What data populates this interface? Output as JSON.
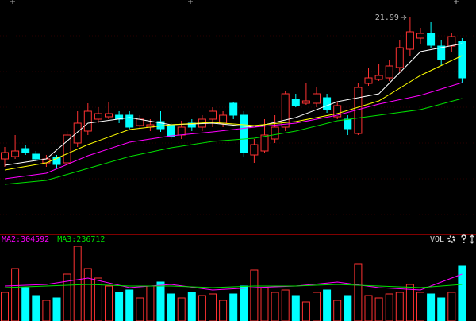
{
  "chart_data": [
    {
      "type": "candlestick",
      "open": [
        16.65,
        16.74,
        17.04,
        16.83,
        16.5,
        16.71,
        16.5,
        17.25,
        17.7,
        18.15,
        18.24,
        18.3,
        18.3,
        17.91,
        17.85,
        18.06,
        17.91,
        17.55,
        18.0,
        17.85,
        18.15,
        18.0,
        18.75,
        18.3,
        16.8,
        16.95,
        17.4,
        17.85,
        18.9,
        18.75,
        18.75,
        18.96,
        18.24,
        18.15,
        17.61,
        19.5,
        19.65,
        19.71,
        20.1,
        20.79,
        21.21,
        21.39,
        20.91,
        20.91,
        21.09
      ],
      "close": [
        16.89,
        16.95,
        16.89,
        16.65,
        16.65,
        16.44,
        17.55,
        18.0,
        18.45,
        18.36,
        18.36,
        18.15,
        17.85,
        18.15,
        17.94,
        17.79,
        17.49,
        17.85,
        17.85,
        18.15,
        18.45,
        18.3,
        18.3,
        16.89,
        17.19,
        17.55,
        17.85,
        19.11,
        18.66,
        18.84,
        19.11,
        18.51,
        18.66,
        17.79,
        19.35,
        19.71,
        19.8,
        20.16,
        20.85,
        21.45,
        21.39,
        20.94,
        20.4,
        21.27,
        19.71
      ],
      "high": [
        17.1,
        17.55,
        17.19,
        16.95,
        16.8,
        16.8,
        17.7,
        18.45,
        18.75,
        18.6,
        18.81,
        18.45,
        18.45,
        18.3,
        18.15,
        18.45,
        18.0,
        18.09,
        18.15,
        18.3,
        18.6,
        18.45,
        18.81,
        18.45,
        17.4,
        18.15,
        18.3,
        19.2,
        19.11,
        19.5,
        19.35,
        19.11,
        18.81,
        18.3,
        19.5,
        20.1,
        20.25,
        20.4,
        21.15,
        21.99,
        21.6,
        21.81,
        21.15,
        21.39,
        21.21
      ],
      "low": [
        16.35,
        16.65,
        16.8,
        16.56,
        16.35,
        16.29,
        16.41,
        17.1,
        17.55,
        18.0,
        18.15,
        18.0,
        17.79,
        17.79,
        17.7,
        17.67,
        17.4,
        17.4,
        17.7,
        17.7,
        17.85,
        17.85,
        18.15,
        16.71,
        16.5,
        16.89,
        17.25,
        17.7,
        18.6,
        18.69,
        18.6,
        18.39,
        18.15,
        17.55,
        17.55,
        19.41,
        19.59,
        19.59,
        19.95,
        20.55,
        21.0,
        20.85,
        20.19,
        20.7,
        19.5
      ],
      "up_color": "#ff3232",
      "down_color": "#00ffff",
      "ylim": [
        13.8,
        22.65
      ],
      "lines": [
        {
          "color": "#ffffff",
          "x": [
            0,
            4,
            8,
            12,
            16,
            20,
            24,
            28,
            32,
            36,
            40,
            44
          ],
          "values": [
            16.41,
            16.65,
            18.0,
            18.21,
            17.94,
            18.0,
            17.85,
            18.21,
            18.81,
            19.11,
            20.7,
            21.0
          ]
        },
        {
          "color": "#ffff00",
          "x": [
            0,
            4,
            8,
            12,
            16,
            20,
            24,
            28,
            32,
            36,
            40,
            44
          ],
          "values": [
            16.23,
            16.5,
            17.19,
            17.76,
            17.94,
            18.03,
            17.91,
            18.06,
            18.36,
            18.84,
            19.8,
            20.55
          ]
        },
        {
          "color": "#ff00ff",
          "x": [
            0,
            4,
            8,
            12,
            16,
            20,
            24,
            28,
            32,
            36,
            40,
            44
          ],
          "values": [
            15.9,
            16.11,
            16.77,
            17.28,
            17.52,
            17.67,
            17.85,
            18.0,
            18.3,
            18.72,
            19.05,
            19.53
          ]
        },
        {
          "color": "#00e000",
          "x": [
            0,
            4,
            8,
            12,
            16,
            20,
            24,
            28,
            32,
            36,
            40,
            44
          ],
          "values": [
            15.69,
            15.84,
            16.29,
            16.74,
            17.07,
            17.31,
            17.43,
            17.7,
            18.09,
            18.3,
            18.51,
            18.93
          ]
        }
      ]
    },
    {
      "type": "bar",
      "title": "VOL",
      "values": [
        180000,
        330000,
        210000,
        160000,
        130000,
        145000,
        295000,
        470000,
        330000,
        270000,
        220000,
        180000,
        195000,
        145000,
        220000,
        245000,
        170000,
        145000,
        180000,
        160000,
        170000,
        130000,
        170000,
        220000,
        320000,
        210000,
        180000,
        195000,
        160000,
        120000,
        180000,
        195000,
        130000,
        160000,
        360000,
        160000,
        145000,
        170000,
        180000,
        230000,
        180000,
        170000,
        145000,
        180000,
        345000
      ],
      "ylim": [
        0,
        500000
      ],
      "series": [
        {
          "name": "MA2:304592",
          "color": "#ff00ff",
          "x": [
            0,
            4,
            8,
            12,
            16,
            20,
            24,
            28,
            32,
            36,
            40,
            44
          ],
          "values": [
            220000,
            230000,
            270000,
            210000,
            230000,
            195000,
            210000,
            220000,
            245000,
            210000,
            195000,
            295000
          ]
        },
        {
          "name": "MA3:236712",
          "color": "#00e000",
          "x": [
            0,
            4,
            8,
            12,
            16,
            20,
            24,
            28,
            32,
            36,
            40,
            44
          ],
          "values": [
            210000,
            220000,
            230000,
            220000,
            220000,
            210000,
            220000,
            220000,
            230000,
            220000,
            210000,
            230000
          ]
        }
      ]
    }
  ]
}
